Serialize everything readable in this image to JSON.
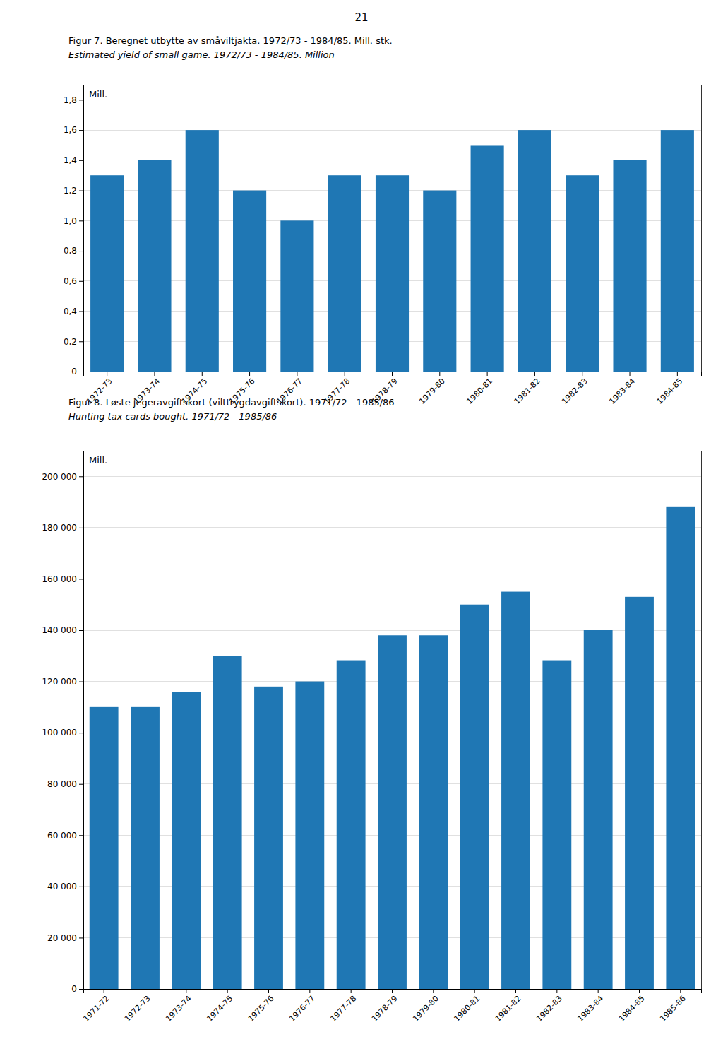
{
  "page_number": "21",
  "chart_data": [
    {
      "type": "bar",
      "title": "Figur 7.  Beregnet utbytte av småviltjakta.  1972/73 - 1984/85.  Mill. stk.",
      "subtitle": "Estimated yield of small game.  1972/73 - 1984/85.  Million",
      "ylabel": "Mill.",
      "categories": [
        "1972-73",
        "1973-74",
        "1974-75",
        "1975-76",
        "1976-77",
        "1977-78",
        "1978-79",
        "1979-80",
        "1980-81",
        "1981-82",
        "1982-83",
        "1983-84",
        "1984-85"
      ],
      "values": [
        1.3,
        1.4,
        1.6,
        1.2,
        1.0,
        1.3,
        1.3,
        1.2,
        1.5,
        1.6,
        1.3,
        1.4,
        1.6
      ],
      "ylim": [
        0,
        1.9
      ],
      "yticks": [
        0,
        {
          "value": 0.2,
          "label": "0,2"
        },
        {
          "value": 0.4,
          "label": "0,4"
        },
        {
          "value": 0.6,
          "label": "0,6"
        },
        {
          "value": 0.8,
          "label": "0,8"
        },
        {
          "value": 1.0,
          "label": "1,0"
        },
        {
          "value": 1.2,
          "label": "1,2"
        },
        {
          "value": 1.4,
          "label": "1,4"
        },
        {
          "value": 1.6,
          "label": "1,6"
        },
        {
          "value": 1.8,
          "label": "1,8"
        }
      ],
      "grid": true
    },
    {
      "type": "bar",
      "title": "Figur 8.   Løste jegeravgiftskort (vilttrygdavgiftskort).  1971/72 - 1985/86",
      "subtitle": "Hunting tax cards bought.  1971/72 - 1985/86",
      "ylabel": "Mill.",
      "categories": [
        "1971-72",
        "1972-73",
        "1973-74",
        "1974-75",
        "1975-76",
        "1976-77",
        "1977-78",
        "1978-79",
        "1979-80",
        "1980-81",
        "1981-82",
        "1982-83",
        "1983-84",
        "1984-85",
        "1985-86"
      ],
      "values": [
        110000,
        110000,
        116000,
        130000,
        118000,
        120000,
        128000,
        138000,
        138000,
        150000,
        155000,
        128000,
        140000,
        153000,
        188000
      ],
      "ylim": [
        0,
        210000
      ],
      "yticks": [
        0,
        {
          "value": 20000,
          "label": "20 000"
        },
        {
          "value": 40000,
          "label": "40 000"
        },
        {
          "value": 60000,
          "label": "60 000"
        },
        {
          "value": 80000,
          "label": "80 000"
        },
        {
          "value": 100000,
          "label": "100 000"
        },
        {
          "value": 120000,
          "label": "120 000"
        },
        {
          "value": 140000,
          "label": "140 000"
        },
        {
          "value": 160000,
          "label": "160 000"
        },
        {
          "value": 180000,
          "label": "180 000"
        },
        {
          "value": 200000,
          "label": "200 000"
        }
      ],
      "grid": true
    }
  ]
}
